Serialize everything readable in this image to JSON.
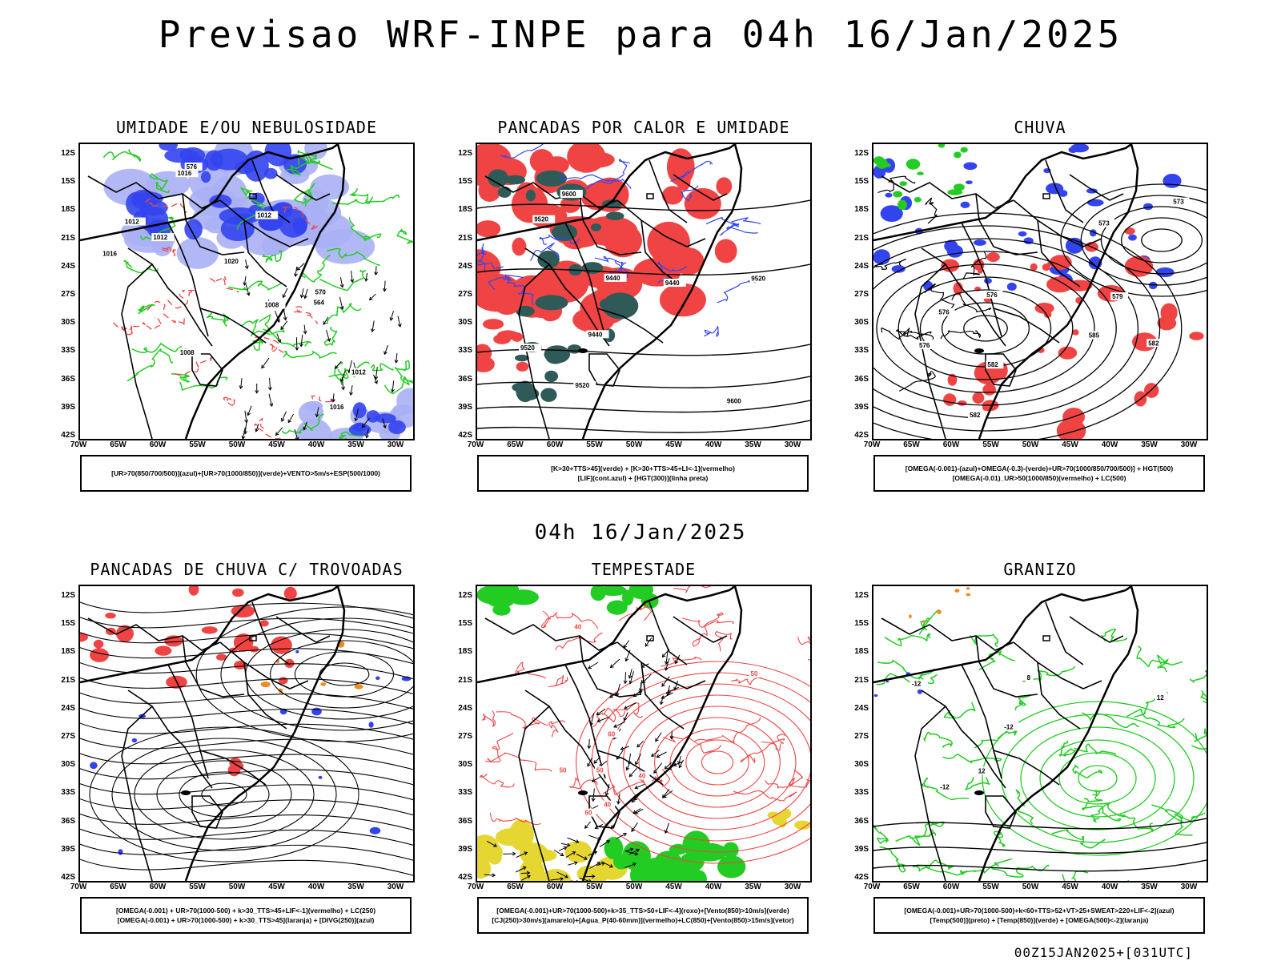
{
  "header": {
    "title": "Previsao WRF-INPE  para 04h 16/Jan/2025",
    "mid_title": "04h 16/Jan/2025",
    "footer": "00Z15JAN2025+[031UTC]"
  },
  "axes": {
    "lat_labels": [
      "12S",
      "15S",
      "18S",
      "21S",
      "24S",
      "27S",
      "30S",
      "33S",
      "36S",
      "39S",
      "42S"
    ],
    "lon_labels": [
      "70W",
      "65W",
      "60W",
      "55W",
      "50W",
      "45W",
      "40W",
      "35W",
      "30W"
    ]
  },
  "colors": {
    "blue": "#3344ee",
    "light_blue": "#aab0f5",
    "green": "#22cc22",
    "red": "#f04444",
    "dark_teal": "#2f5a58",
    "yellow": "#e6d632",
    "orange": "#f08a22",
    "black": "#000000"
  },
  "panels": [
    {
      "title": "UMIDADE E/OU NEBULOSIDADE",
      "legend": [
        "[UR>70(850/700/500)](azul)+[UR>70(1000/850)](verde)+VENTO>5m/s+ESP(500/1000)"
      ],
      "labels": [
        "1012",
        "1012",
        "1020",
        "1016",
        "1008",
        "1012",
        "1016",
        "1008",
        "1012",
        "564",
        "576",
        "570",
        "1016"
      ]
    },
    {
      "title": "PANCADAS POR CALOR E UMIDADE",
      "legend": [
        "[K>30+TTS>45](verde) + [K>30+TTS>45+LI<-1](vermelho)",
        "[LIF](cont.azul) + [HGT(300)](linha preta)"
      ],
      "labels": [
        "9600",
        "9520",
        "9440",
        "9600",
        "9520",
        "9520",
        "9440",
        "9520",
        "9440"
      ]
    },
    {
      "title": "CHUVA",
      "legend": [
        "[OMEGA(-0.001)-(azul)+OMEGA(-0.3)-(verde)+UR>70(1000/850/700/500)] + HGT(500)",
        "[OMEGA(-0.01)_UR>50(1000/850)(vermelho) + LC(500)"
      ],
      "labels": [
        "582",
        "585",
        "576",
        "582",
        "582",
        "573",
        "576",
        "573",
        "579",
        "576"
      ]
    },
    {
      "title": "PANCADAS DE CHUVA C/ TROVOADAS",
      "legend": [
        "[OMEGA(-0.001) + UR>70(1000-500) + k>30_TTS>45+LIF<-1](vermelho) + LC(250)",
        "[OMEGA(-0.001) + UR>70(1000-500) + k>30_TTS>45](laranja) + [DIVG(250)](azul)"
      ],
      "labels": []
    },
    {
      "title": "TEMPESTADE",
      "legend": [
        "[OMEGA(-0.001)+UR>70(1000-500)+k>35_TTS>50+LIF<-4](roxo)+[Vento(850)>10m/s](verde)",
        "[CJ(250)>30m/s](amarelo)+[Agua_P(40-60mm)](vermelho)+LC(850)+[Vento(850)>15m/s](vetor)"
      ],
      "labels": [
        "50",
        "40",
        "50",
        "60",
        "40",
        "50",
        "60",
        "40"
      ]
    },
    {
      "title": "GRANIZO",
      "legend": [
        "[OMEGA(-0.001)+UR>70(1000-500)+k<60+TTS>52+VT>25+SWEAT>220+LIF<-2](azul)",
        "[Temp(500)](preto) + [Temp(850)](verde) + [OMEGA(500)<-2](laranja)"
      ],
      "labels": [
        "-12",
        "-12",
        "-12",
        "12",
        "12",
        "8"
      ]
    }
  ]
}
